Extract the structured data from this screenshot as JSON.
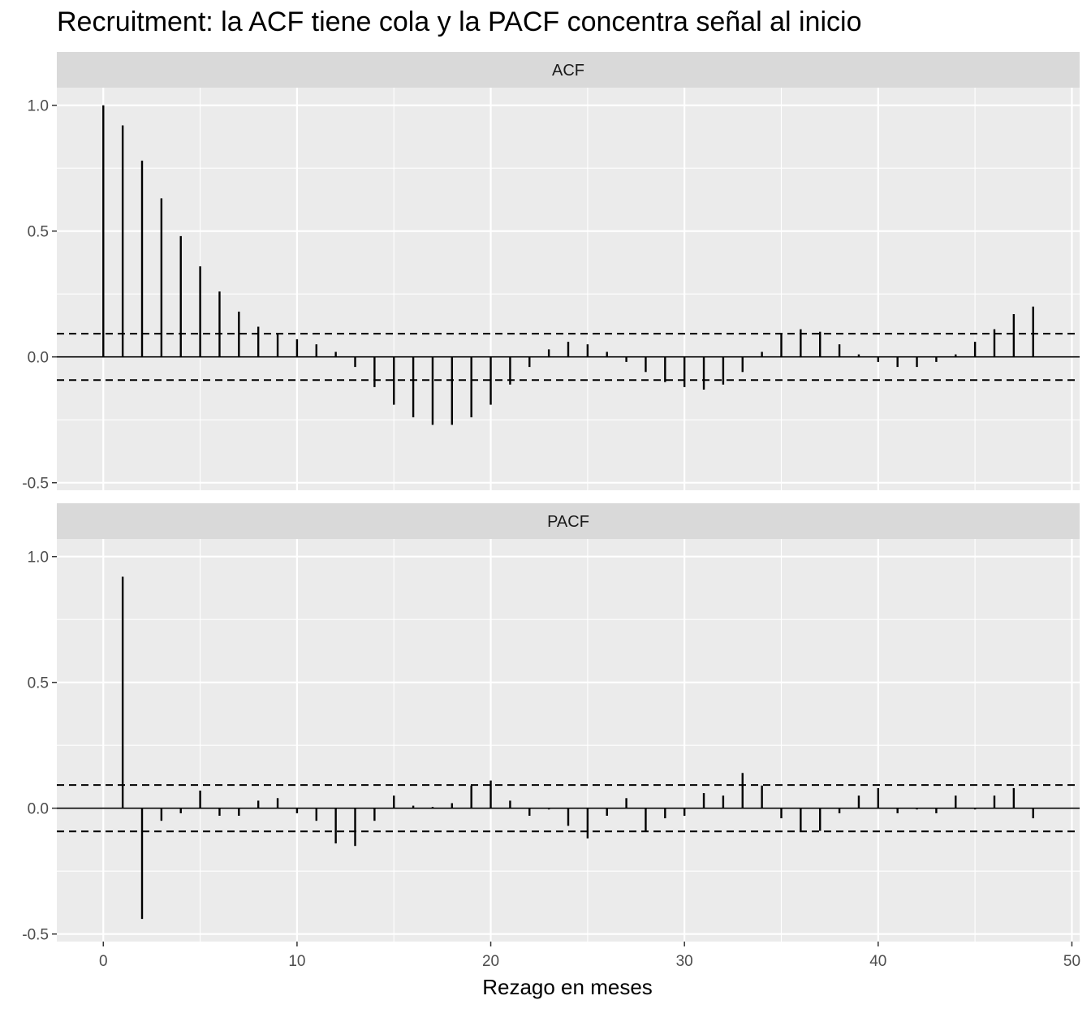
{
  "title": "Recruitment: la ACF tiene cola y la PACF concentra señal al inicio",
  "colors": {
    "panel_bg": "#ebebeb",
    "strip_bg": "#d9d9d9",
    "grid": "#ffffff",
    "mark": "#000000",
    "tick_text": "#4d4d4d"
  },
  "chart_data": {
    "type": "bar",
    "xlabel": "Rezago en meses",
    "xlim": [
      -2.4,
      50.4
    ],
    "x_ticks": [
      0,
      10,
      20,
      30,
      40,
      50
    ],
    "x_tick_labels": [
      "0",
      "10",
      "20",
      "30",
      "40",
      "50"
    ],
    "ylim": [
      -0.53,
      1.07
    ],
    "y_ticks": [
      -0.5,
      0.0,
      0.5,
      1.0
    ],
    "y_tick_labels": [
      "-0.5",
      "0.0",
      "0.5",
      "1.0"
    ],
    "grid": true,
    "confidence_bound": 0.092,
    "panels": [
      {
        "label": "ACF",
        "lags": [
          0,
          1,
          2,
          3,
          4,
          5,
          6,
          7,
          8,
          9,
          10,
          11,
          12,
          13,
          14,
          15,
          16,
          17,
          18,
          19,
          20,
          21,
          22,
          23,
          24,
          25,
          26,
          27,
          28,
          29,
          30,
          31,
          32,
          33,
          34,
          35,
          36,
          37,
          38,
          39,
          40,
          41,
          42,
          43,
          44,
          45,
          46,
          47,
          48
        ],
        "values": [
          1.0,
          0.92,
          0.78,
          0.63,
          0.48,
          0.36,
          0.26,
          0.18,
          0.12,
          0.09,
          0.07,
          0.05,
          0.02,
          -0.04,
          -0.12,
          -0.19,
          -0.24,
          -0.27,
          -0.27,
          -0.24,
          -0.19,
          -0.11,
          -0.04,
          0.03,
          0.06,
          0.05,
          0.02,
          -0.02,
          -0.06,
          -0.1,
          -0.12,
          -0.13,
          -0.11,
          -0.06,
          0.02,
          0.09,
          0.11,
          0.1,
          0.05,
          0.01,
          -0.02,
          -0.04,
          -0.04,
          -0.02,
          0.01,
          0.06,
          0.11,
          0.17,
          0.2
        ]
      },
      {
        "label": "PACF",
        "lags": [
          1,
          2,
          3,
          4,
          5,
          6,
          7,
          8,
          9,
          10,
          11,
          12,
          13,
          14,
          15,
          16,
          17,
          18,
          19,
          20,
          21,
          22,
          23,
          24,
          25,
          26,
          27,
          28,
          29,
          30,
          31,
          32,
          33,
          34,
          35,
          36,
          37,
          38,
          39,
          40,
          41,
          42,
          43,
          44,
          45,
          46,
          47,
          48
        ],
        "values": [
          0.92,
          -0.44,
          -0.05,
          -0.02,
          0.07,
          -0.03,
          -0.03,
          0.03,
          0.04,
          -0.02,
          -0.05,
          -0.14,
          -0.15,
          -0.05,
          0.05,
          0.01,
          0.005,
          0.02,
          0.09,
          0.11,
          0.03,
          -0.03,
          -0.005,
          -0.07,
          -0.12,
          -0.03,
          0.04,
          -0.09,
          -0.04,
          -0.03,
          0.06,
          0.05,
          0.14,
          0.09,
          -0.04,
          -0.09,
          -0.09,
          -0.02,
          0.05,
          0.08,
          -0.02,
          -0.005,
          -0.02,
          0.05,
          -0.005,
          0.05,
          0.08,
          -0.04
        ]
      }
    ]
  }
}
